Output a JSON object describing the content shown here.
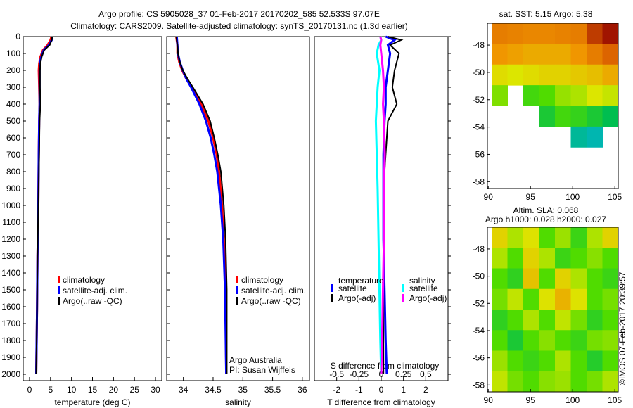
{
  "title_line1": "Argo profile: CS 5905028_37 01-Feb-2017 20170202_585 52.533S 97.07E",
  "title_line2": "Climatology: CARS2009. Satellite-adjusted climatology: synTS_20170131.nc (1.3d earlier)",
  "colors": {
    "climatology": "#ff0000",
    "satellite": "#0000ff",
    "argo": "#000000",
    "sal_satellite": "#00ffff",
    "sal_argo": "#ff00ff"
  },
  "chart_data": [
    {
      "type": "line",
      "name": "temperature",
      "xlabel": "temperature (deg C)",
      "xlim": [
        -1.5,
        31.5
      ],
      "ylim": [
        2040,
        0
      ],
      "xticks": [
        "0",
        "5",
        "10",
        "15",
        "20",
        "25",
        "30"
      ],
      "yticks": [
        "0",
        "100",
        "200",
        "300",
        "400",
        "500",
        "600",
        "700",
        "800",
        "900",
        "1000",
        "1100",
        "1200",
        "1300",
        "1400",
        "1500",
        "1600",
        "1700",
        "1800",
        "1900",
        "2000"
      ],
      "depth": [
        0,
        20,
        50,
        80,
        120,
        160,
        200,
        300,
        400,
        500,
        700,
        1000,
        1300,
        1600,
        2000
      ],
      "series": [
        {
          "name": "climatology",
          "color": "#ff0000",
          "values": [
            5.2,
            5.0,
            4.3,
            3.2,
            2.6,
            2.3,
            2.2,
            2.3,
            2.4,
            2.3,
            2.2,
            2.1,
            1.9,
            1.8,
            1.6
          ]
        },
        {
          "name": "satellite-adj. clim.",
          "color": "#0000ff",
          "values": [
            5.4,
            5.3,
            4.6,
            3.4,
            2.8,
            2.5,
            2.4,
            2.4,
            2.4,
            2.3,
            2.2,
            2.1,
            1.9,
            1.8,
            1.6
          ]
        },
        {
          "name": "Argo(..raw -QC)",
          "color": "#000000",
          "values": [
            5.4,
            5.3,
            4.8,
            3.5,
            2.9,
            2.6,
            2.5,
            2.5,
            2.6,
            2.4,
            2.3,
            2.1,
            1.9,
            1.8,
            1.6
          ]
        }
      ],
      "legend": [
        "climatology",
        "satellite-adj. clim.",
        "Argo(..raw -QC)"
      ]
    },
    {
      "type": "line",
      "name": "salinity",
      "xlabel": "salinity",
      "xlim": [
        33.72,
        36.12
      ],
      "ylim": [
        2040,
        0
      ],
      "xticks": [
        "34",
        "34.5",
        "35",
        "35.5",
        "36"
      ],
      "depth": [
        0,
        50,
        100,
        150,
        200,
        250,
        300,
        400,
        500,
        600,
        700,
        800,
        1000,
        1200,
        1500,
        2000
      ],
      "series": [
        {
          "name": "climatology",
          "color": "#ff0000",
          "values": [
            33.88,
            33.9,
            33.9,
            33.93,
            33.98,
            34.05,
            34.14,
            34.3,
            34.42,
            34.5,
            34.56,
            34.6,
            34.65,
            34.68,
            34.71,
            34.72
          ]
        },
        {
          "name": "satellite-adj. clim.",
          "color": "#0000ff",
          "values": [
            33.89,
            33.9,
            33.91,
            33.94,
            33.99,
            34.05,
            34.13,
            34.27,
            34.38,
            34.46,
            34.52,
            34.57,
            34.63,
            34.67,
            34.7,
            34.72
          ]
        },
        {
          "name": "Argo(..raw -QC)",
          "color": "#000000",
          "values": [
            33.88,
            33.9,
            33.91,
            33.94,
            33.99,
            34.07,
            34.16,
            34.33,
            34.45,
            34.52,
            34.58,
            34.63,
            34.68,
            34.71,
            34.73,
            34.73
          ]
        }
      ],
      "legend": [
        "climatology",
        "satellite-adj. clim.",
        "Argo(..raw -QC)"
      ],
      "annotation": [
        "Argo Australia",
        "PI: Susan Wijffels"
      ]
    },
    {
      "type": "line",
      "name": "difference",
      "xlabel": "T difference from climatology",
      "xlabel2": "S difference from climatology",
      "xlim": [
        -3,
        3
      ],
      "xticks": [
        "-2",
        "-1",
        "0",
        "1",
        "2"
      ],
      "xticks2": [
        "-0.5",
        "-0.25",
        "0",
        "0.25",
        "0.5"
      ],
      "ylim": [
        2040,
        0
      ],
      "depth": [
        0,
        20,
        50,
        100,
        200,
        300,
        400,
        500,
        700,
        900,
        1200,
        1500,
        1800,
        2000
      ],
      "series": [
        {
          "name": "T satellite",
          "color": "#0000ff",
          "values": [
            0.2,
            0.6,
            0.3,
            0.4,
            0.3,
            0.2,
            0.2,
            0.15,
            0.1,
            0.1,
            0.1,
            0.15,
            0.2,
            0.25
          ]
        },
        {
          "name": "T Argo(-adj)",
          "color": "#000000",
          "values": [
            0.3,
            0.9,
            0.4,
            0.8,
            0.6,
            0.5,
            0.7,
            0.3,
            0.2,
            0.1,
            0.1,
            0.1,
            0.1,
            0.1
          ]
        },
        {
          "name": "S satellite",
          "color": "#00ffff",
          "values": [
            -0.01,
            0.0,
            -0.03,
            -0.05,
            -0.02,
            -0.04,
            -0.05,
            -0.06,
            -0.05,
            -0.04,
            -0.03,
            -0.02,
            -0.01,
            0.0
          ]
        },
        {
          "name": "S Argo(-adj)",
          "color": "#ff00ff",
          "values": [
            -0.01,
            0.0,
            -0.01,
            0.0,
            0.02,
            0.03,
            0.02,
            0.03,
            0.04,
            0.03,
            0.03,
            0.02,
            0.01,
            0.0
          ]
        }
      ],
      "legend": {
        "temperature": "temperature",
        "salinity": "salinity",
        "t_sat": "satellite",
        "t_argo": "Argo(-adj)",
        "s_sat": "satellite",
        "s_argo": "Argo(-adj)"
      }
    },
    {
      "type": "heatmap",
      "name": "sst-map",
      "title": "sat. SST: 5.15 Argo: 5.38",
      "xlim": [
        89.9,
        105.4
      ],
      "ylim": [
        -58.5,
        -46.4
      ],
      "xticks": [
        "90",
        "95",
        "100",
        "105"
      ],
      "yticks": [
        "-48",
        "-50",
        "-52",
        "-54",
        "-56",
        "-58"
      ],
      "grid": [
        [
          6.5,
          6.4,
          6.3,
          6.3,
          6.4,
          6.5,
          7.5,
          8
        ],
        [
          6,
          5.9,
          5.8,
          5.8,
          5.8,
          6,
          6.5,
          7
        ],
        [
          5.3,
          5.2,
          5.3,
          5.4,
          5.4,
          5.5,
          5.6,
          5.8
        ],
        [
          4.8,
          null,
          4.5,
          4.6,
          4.9,
          5,
          5.2,
          5.1
        ],
        [
          null,
          null,
          null,
          4.2,
          4.5,
          4.4,
          4.2,
          4
        ],
        [
          null,
          null,
          null,
          null,
          null,
          3.4,
          3.2,
          null
        ],
        [
          null,
          null,
          null,
          null,
          null,
          null,
          null,
          null
        ],
        [
          null,
          null,
          null,
          null,
          null,
          null,
          null,
          null
        ]
      ]
    },
    {
      "type": "heatmap",
      "name": "sla-map",
      "title1": "Altim. SLA: 0.068",
      "title2": "Argo h1000: 0.028 h2000: 0.027",
      "xlim": [
        89.9,
        105.4
      ],
      "ylim": [
        -58.5,
        -46.4
      ],
      "xticks": [
        "90",
        "95",
        "100",
        "105"
      ],
      "yticks": [
        "-48",
        "-50",
        "-52",
        "-54",
        "-56",
        "-58"
      ],
      "grid": [
        [
          0.1,
          0.05,
          0.08,
          0,
          0.04,
          -0.02,
          0.05,
          0.1
        ],
        [
          0.05,
          0,
          0.1,
          0.05,
          -0.02,
          0,
          0.03,
          0
        ],
        [
          0,
          -0.03,
          0.12,
          0,
          0.1,
          0.05,
          0,
          -0.02
        ],
        [
          0.02,
          0.06,
          0,
          0.08,
          0.14,
          0.08,
          0,
          0.02
        ],
        [
          -0.03,
          0,
          0.05,
          0,
          0.06,
          0.02,
          -0.03,
          0
        ],
        [
          0,
          -0.05,
          0,
          0.03,
          0,
          -0.02,
          0.02,
          0.03
        ],
        [
          0.04,
          0,
          -0.02,
          0,
          0.05,
          0,
          -0.04,
          0
        ],
        [
          0.06,
          0.02,
          0,
          0.03,
          0.04,
          0,
          0.02,
          0.05
        ]
      ]
    }
  ],
  "timestamp": "©IMOS 07-Feb-2017 20:39:57"
}
